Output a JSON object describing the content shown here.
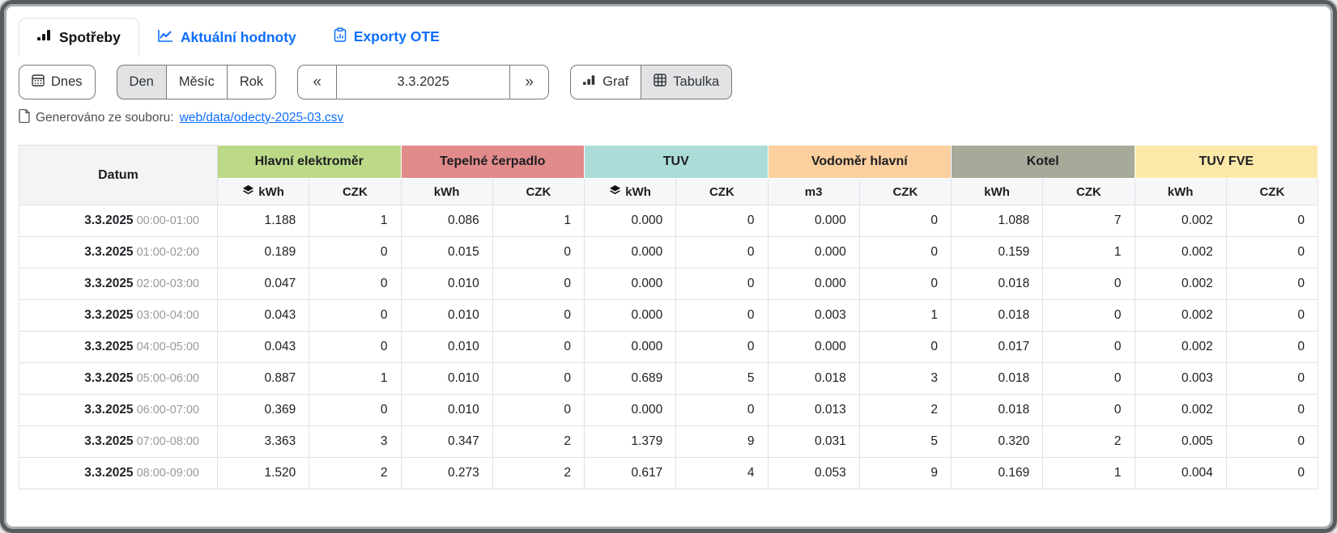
{
  "tabs": [
    {
      "label": "Spotřeby",
      "icon": "bar-chart-icon",
      "active": true
    },
    {
      "label": "Aktuální hodnoty",
      "icon": "line-chart-icon",
      "active": false
    },
    {
      "label": "Exporty OTE",
      "icon": "clipboard-chart-icon",
      "active": false
    }
  ],
  "toolbar": {
    "today_label": "Dnes",
    "period_buttons": [
      {
        "label": "Den",
        "active": true
      },
      {
        "label": "Měsíc",
        "active": false
      },
      {
        "label": "Rok",
        "active": false
      }
    ],
    "prev_icon": "«",
    "date_value": "3.3.2025",
    "next_icon": "»",
    "view_buttons": [
      {
        "label": "Graf",
        "icon": "bar-chart-icon",
        "active": false
      },
      {
        "label": "Tabulka",
        "icon": "table-icon",
        "active": true
      }
    ]
  },
  "generated": {
    "prefix": "Generováno ze souboru:",
    "link": "web/data/odecty-2025-03.csv"
  },
  "table": {
    "datum_header": "Datum",
    "groups": [
      {
        "label": "Hlavní elektroměr",
        "color": "#bcd988",
        "cols": [
          {
            "label": "kWh",
            "icon": "stack-icon"
          },
          {
            "label": "CZK"
          }
        ]
      },
      {
        "label": "Tepelné čerpadlo",
        "color": "#e28b8b",
        "cols": [
          {
            "label": "kWh"
          },
          {
            "label": "CZK"
          }
        ]
      },
      {
        "label": "TUV",
        "color": "#abdcd7",
        "cols": [
          {
            "label": "kWh",
            "icon": "stack-icon"
          },
          {
            "label": "CZK"
          }
        ]
      },
      {
        "label": "Vodoměr hlavní",
        "color": "#fbcf9e",
        "cols": [
          {
            "label": "m3"
          },
          {
            "label": "CZK"
          }
        ]
      },
      {
        "label": "Kotel",
        "color": "#a5aa99",
        "cols": [
          {
            "label": "kWh"
          },
          {
            "label": "CZK"
          }
        ]
      },
      {
        "label": "TUV FVE",
        "color": "#fce9a9",
        "cols": [
          {
            "label": "kWh"
          },
          {
            "label": "CZK"
          }
        ]
      }
    ],
    "rows": [
      {
        "date": "3.3.2025",
        "time": "00:00-01:00",
        "values": [
          "1.188",
          "1",
          "0.086",
          "1",
          "0.000",
          "0",
          "0.000",
          "0",
          "1.088",
          "7",
          "0.002",
          "0"
        ]
      },
      {
        "date": "3.3.2025",
        "time": "01:00-02:00",
        "values": [
          "0.189",
          "0",
          "0.015",
          "0",
          "0.000",
          "0",
          "0.000",
          "0",
          "0.159",
          "1",
          "0.002",
          "0"
        ]
      },
      {
        "date": "3.3.2025",
        "time": "02:00-03:00",
        "values": [
          "0.047",
          "0",
          "0.010",
          "0",
          "0.000",
          "0",
          "0.000",
          "0",
          "0.018",
          "0",
          "0.002",
          "0"
        ]
      },
      {
        "date": "3.3.2025",
        "time": "03:00-04:00",
        "values": [
          "0.043",
          "0",
          "0.010",
          "0",
          "0.000",
          "0",
          "0.003",
          "1",
          "0.018",
          "0",
          "0.002",
          "0"
        ]
      },
      {
        "date": "3.3.2025",
        "time": "04:00-05:00",
        "values": [
          "0.043",
          "0",
          "0.010",
          "0",
          "0.000",
          "0",
          "0.000",
          "0",
          "0.017",
          "0",
          "0.002",
          "0"
        ]
      },
      {
        "date": "3.3.2025",
        "time": "05:00-06:00",
        "values": [
          "0.887",
          "1",
          "0.010",
          "0",
          "0.689",
          "5",
          "0.018",
          "3",
          "0.018",
          "0",
          "0.003",
          "0"
        ]
      },
      {
        "date": "3.3.2025",
        "time": "06:00-07:00",
        "values": [
          "0.369",
          "0",
          "0.010",
          "0",
          "0.000",
          "0",
          "0.013",
          "2",
          "0.018",
          "0",
          "0.002",
          "0"
        ]
      },
      {
        "date": "3.3.2025",
        "time": "07:00-08:00",
        "values": [
          "3.363",
          "3",
          "0.347",
          "2",
          "1.379",
          "9",
          "0.031",
          "5",
          "0.320",
          "2",
          "0.005",
          "0"
        ]
      },
      {
        "date": "3.3.2025",
        "time": "08:00-09:00",
        "values": [
          "1.520",
          "2",
          "0.273",
          "2",
          "0.617",
          "4",
          "0.053",
          "9",
          "0.169",
          "1",
          "0.004",
          "0"
        ]
      }
    ]
  }
}
